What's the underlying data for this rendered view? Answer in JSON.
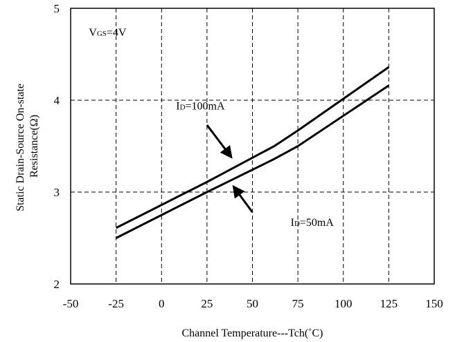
{
  "chart_data": {
    "type": "line",
    "xlabel": "Channel Temperature---Tch(˚C)",
    "ylabel": [
      "Static Drain-Source On-state",
      "Resistance(Ω)"
    ],
    "xlim": [
      -50,
      150
    ],
    "ylim": [
      2,
      5
    ],
    "x_ticks": [
      "-50",
      "-25",
      "0",
      "25",
      "50",
      "75",
      "100",
      "125",
      "150"
    ],
    "y_ticks": [
      "2",
      "3",
      "4",
      "5"
    ],
    "grid": true,
    "series": [
      {
        "name": "ID=100mA",
        "x": [
          -25,
          0,
          25,
          62,
          75,
          125
        ],
        "y": [
          2.61,
          2.86,
          3.11,
          3.5,
          3.67,
          4.36
        ]
      },
      {
        "name": "ID=50mA",
        "x": [
          -25,
          0,
          25,
          62,
          75,
          125
        ],
        "y": [
          2.5,
          2.75,
          3.0,
          3.36,
          3.5,
          4.16
        ]
      }
    ],
    "annotations": [
      {
        "id": "vgs",
        "text": "VGS=4V",
        "main": "V",
        "sub": "GS",
        "rest": "=4V",
        "x": -40,
        "y": 4.7
      },
      {
        "id": "id100",
        "text": "ID=100mA",
        "main": "I",
        "sub": "D",
        "rest": "=100mA",
        "x": 8,
        "y": 3.9,
        "arrow": {
          "from": [
            25,
            3.73
          ],
          "to": [
            38,
            3.39
          ]
        }
      },
      {
        "id": "id50",
        "text": "ID=50mA",
        "main": "I",
        "sub": "D",
        "rest": "=50mA",
        "x": 71,
        "y": 2.63,
        "arrow": {
          "from": [
            50,
            2.78
          ],
          "to": [
            40,
            3.05
          ]
        }
      }
    ]
  }
}
